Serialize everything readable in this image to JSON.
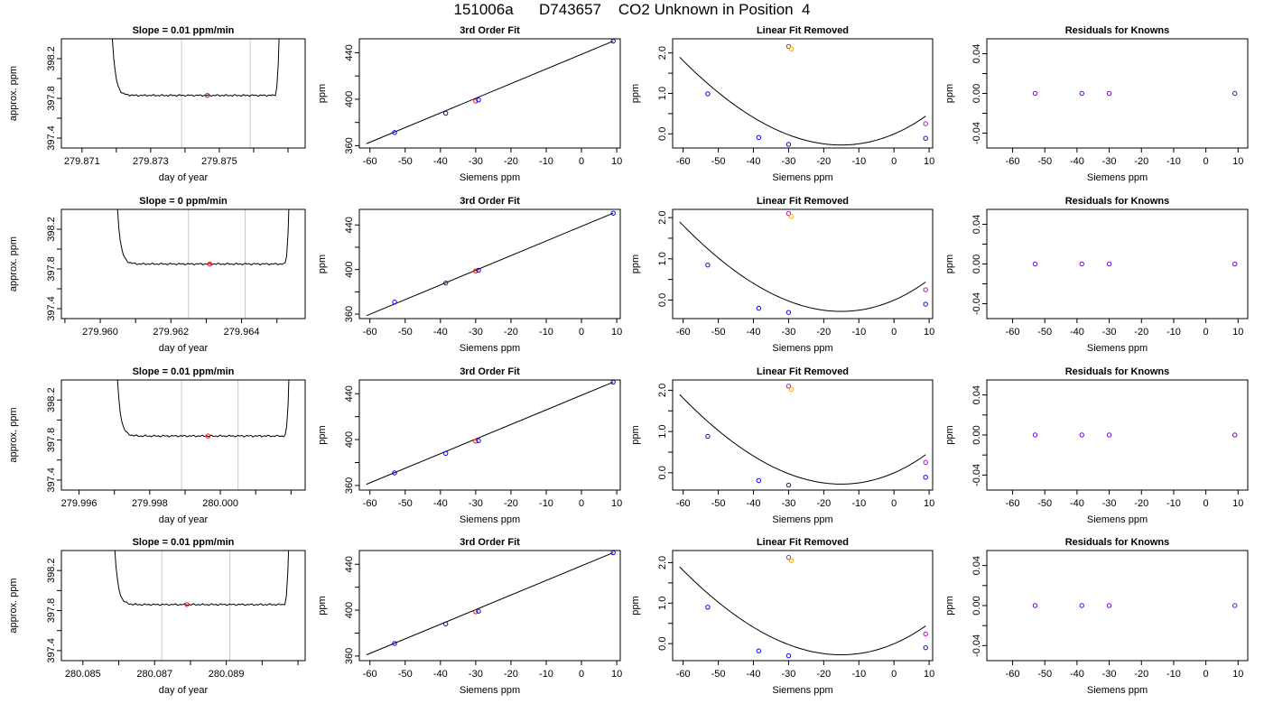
{
  "page_title": "151006a      D743657    CO2 Unknown in Position  4",
  "colors": {
    "trace": "#000000",
    "window_line": "#c8c8c8",
    "unknown_point": "#ff0000",
    "known_point": "#0000ff",
    "ref_magenta": "#cc00cc",
    "ref_orange": "#ffa500",
    "residual_point": "#6600cc"
  },
  "chart_data": [
    {
      "row": 1,
      "type": "line",
      "title": "Slope =  0.01  ppm/min",
      "xlabel": "day of year",
      "ylabel": "approx. ppm",
      "xlim": [
        279.8704,
        279.8775
      ],
      "ylim": [
        397.3,
        398.4
      ],
      "xticks": [
        279.871,
        279.872,
        279.873,
        279.874,
        279.875,
        279.876,
        279.877
      ],
      "xticklabels": [
        "279.871",
        "",
        "279.873",
        "",
        "279.875",
        "",
        ""
      ],
      "yticks": [
        397.4,
        397.6,
        397.8,
        398.0,
        398.2
      ],
      "yticklabels": [
        "397.4",
        "",
        "397.8",
        "",
        "398.2"
      ],
      "trace": {
        "x_start": 279.8718,
        "x_end": 279.8768,
        "level": 397.83
      },
      "window": [
        279.8739,
        279.8759
      ],
      "marker": [
        279.87465,
        397.83
      ]
    },
    {
      "row": 1,
      "type": "scatter",
      "title": "3rd Order Fit",
      "xlabel": "Siemens ppm",
      "ylabel": "ppm",
      "xlim": [
        -63,
        11
      ],
      "ylim": [
        358,
        452
      ],
      "xticks": [
        -60,
        -50,
        -40,
        -30,
        -20,
        -10,
        0,
        10
      ],
      "yticks": [
        360,
        380,
        400,
        420,
        440
      ],
      "yticklabels": [
        "360",
        "",
        "400",
        "",
        "440"
      ],
      "points": [
        [
          -53,
          371.3
        ],
        [
          -38.5,
          387.9
        ],
        [
          -30,
          398.4
        ],
        [
          -29.2,
          399.3
        ],
        [
          9,
          450.0
        ]
      ],
      "fit": [
        [
          -61,
          361.7
        ],
        [
          9,
          450.0
        ]
      ]
    },
    {
      "row": 1,
      "type": "scatter",
      "title": "Linear Fit Removed",
      "xlabel": "Siemens ppm",
      "ylabel": "ppm",
      "xlim": [
        -63,
        11
      ],
      "ylim": [
        -0.35,
        2.35
      ],
      "xticks": [
        -60,
        -50,
        -40,
        -30,
        -20,
        -10,
        0,
        10
      ],
      "yticks": [
        0,
        0.5,
        1.0,
        1.5,
        2.0
      ],
      "yticklabels": [
        "0.0",
        "",
        "1.0",
        "",
        "2.0"
      ],
      "known_points": [
        [
          -53,
          0.99
        ],
        [
          -38.5,
          -0.09
        ],
        [
          -30,
          -0.26
        ],
        [
          9,
          -0.11
        ]
      ],
      "ref_points": [
        [
          -30,
          2.16,
          "magenta"
        ],
        [
          -29.2,
          2.1,
          "orange"
        ],
        [
          9,
          0.25,
          "magenta"
        ]
      ],
      "curve_coef": [
        -0.003,
        0.037,
        0.0013,
        3e-06
      ]
    },
    {
      "row": 1,
      "type": "scatter",
      "title": "Residuals for Knowns",
      "xlabel": "Siemens ppm",
      "ylabel": "ppm",
      "xlim": [
        -68,
        13
      ],
      "ylim": [
        -0.055,
        0.055
      ],
      "xticks": [
        -60,
        -50,
        -40,
        -30,
        -20,
        -10,
        0,
        10
      ],
      "yticks": [
        -0.04,
        -0.02,
        0,
        0.02,
        0.04
      ],
      "yticklabels": [
        "-0.04",
        "",
        "0.00",
        "",
        "0.04"
      ],
      "points": [
        [
          -53,
          0
        ],
        [
          -38.5,
          0
        ],
        [
          -30,
          0
        ],
        [
          9,
          0
        ]
      ]
    },
    {
      "row": 2,
      "type": "line",
      "title": "Slope =  0  ppm/min",
      "xlabel": "day of year",
      "ylabel": "approx. ppm",
      "xlim": [
        279.9589,
        279.9658
      ],
      "ylim": [
        397.3,
        398.4
      ],
      "xticks": [
        279.959,
        279.96,
        279.961,
        279.962,
        279.963,
        279.964,
        279.965
      ],
      "xticklabels": [
        "",
        "279.960",
        "",
        "279.962",
        "",
        "279.964",
        ""
      ],
      "yticks": [
        397.4,
        397.6,
        397.8,
        398.0,
        398.2
      ],
      "yticklabels": [
        "397.4",
        "",
        "397.8",
        "",
        "398.2"
      ],
      "trace": {
        "x_start": 279.9604,
        "x_end": 279.9654,
        "level": 397.85
      },
      "window": [
        279.9625,
        279.9641
      ],
      "marker": [
        279.9631,
        397.85
      ]
    },
    {
      "row": 2,
      "type": "scatter",
      "title": "3rd Order Fit",
      "xlabel": "Siemens ppm",
      "ylabel": "ppm",
      "xlim": [
        -63,
        11
      ],
      "ylim": [
        356,
        454
      ],
      "xticks": [
        -60,
        -50,
        -40,
        -30,
        -20,
        -10,
        0,
        10
      ],
      "yticks": [
        360,
        380,
        400,
        420,
        440
      ],
      "yticklabels": [
        "360",
        "",
        "400",
        "",
        "440"
      ],
      "points": [
        [
          -53,
          370.8
        ],
        [
          -38.5,
          387.9
        ],
        [
          -30,
          398.8
        ],
        [
          -29.2,
          399.4
        ],
        [
          9,
          450.6
        ]
      ],
      "fit": [
        [
          -61,
          358.6
        ],
        [
          9,
          450.6
        ]
      ]
    },
    {
      "row": 2,
      "type": "scatter",
      "title": "Linear Fit Removed",
      "xlabel": "Siemens ppm",
      "ylabel": "ppm",
      "xlim": [
        -63,
        11
      ],
      "ylim": [
        -0.45,
        2.2
      ],
      "xticks": [
        -60,
        -50,
        -40,
        -30,
        -20,
        -10,
        0,
        10
      ],
      "yticks": [
        0,
        0.5,
        1.0,
        1.5,
        2.0
      ],
      "yticklabels": [
        "0.0",
        "",
        "1.0",
        "",
        "2.0"
      ],
      "known_points": [
        [
          -53,
          0.85
        ],
        [
          -38.5,
          -0.2
        ],
        [
          -30,
          -0.3
        ],
        [
          9,
          -0.1
        ]
      ],
      "ref_points": [
        [
          -30,
          2.1,
          "magenta"
        ],
        [
          -29.2,
          2.03,
          "orange"
        ],
        [
          9,
          0.25,
          "magenta"
        ]
      ],
      "curve_coef": [
        -0.003,
        0.037,
        0.0013,
        3e-06
      ]
    },
    {
      "row": 2,
      "type": "scatter",
      "title": "Residuals for Knowns",
      "xlabel": "Siemens ppm",
      "ylabel": "ppm",
      "xlim": [
        -68,
        13
      ],
      "ylim": [
        -0.055,
        0.055
      ],
      "xticks": [
        -60,
        -50,
        -40,
        -30,
        -20,
        -10,
        0,
        10
      ],
      "yticks": [
        -0.04,
        -0.02,
        0,
        0.02,
        0.04
      ],
      "yticklabels": [
        "-0.04",
        "",
        "0.00",
        "",
        "0.04"
      ],
      "points": [
        [
          -53,
          0
        ],
        [
          -38.5,
          0
        ],
        [
          -30,
          0
        ],
        [
          9,
          0
        ]
      ]
    },
    {
      "row": 3,
      "type": "line",
      "title": "Slope =  0.01  ppm/min",
      "xlabel": "day of year",
      "ylabel": "approx. ppm",
      "xlim": [
        279.9955,
        280.0024
      ],
      "ylim": [
        397.3,
        398.4
      ],
      "xticks": [
        279.996,
        279.997,
        279.998,
        279.999,
        280.0,
        280.001,
        280.002
      ],
      "xticklabels": [
        "279.996",
        "",
        "279.998",
        "",
        "280.000",
        "",
        ""
      ],
      "yticks": [
        397.4,
        397.6,
        397.8,
        398.0,
        398.2
      ],
      "yticklabels": [
        "397.4",
        "",
        "397.8",
        "",
        "398.2"
      ],
      "trace": {
        "x_start": 279.997,
        "x_end": 280.002,
        "level": 397.84
      },
      "window": [
        279.9989,
        280.0005
      ],
      "marker": [
        279.99965,
        397.84
      ]
    },
    {
      "row": 3,
      "type": "scatter",
      "title": "3rd Order Fit",
      "xlabel": "Siemens ppm",
      "ylabel": "ppm",
      "xlim": [
        -63,
        11
      ],
      "ylim": [
        356,
        452
      ],
      "xticks": [
        -60,
        -50,
        -40,
        -30,
        -20,
        -10,
        0,
        10
      ],
      "yticks": [
        360,
        380,
        400,
        420,
        440
      ],
      "yticklabels": [
        "360",
        "",
        "400",
        "",
        "440"
      ],
      "points": [
        [
          -53,
          371.0
        ],
        [
          -38.5,
          388.0
        ],
        [
          -30,
          398.6
        ],
        [
          -29.2,
          399.1
        ],
        [
          9,
          450.1
        ]
      ],
      "fit": [
        [
          -61,
          361.0
        ],
        [
          9,
          450.1
        ]
      ]
    },
    {
      "row": 3,
      "type": "scatter",
      "title": "Linear Fit Removed",
      "xlabel": "Siemens ppm",
      "ylabel": "ppm",
      "xlim": [
        -63,
        11
      ],
      "ylim": [
        -0.42,
        2.25
      ],
      "xticks": [
        -60,
        -50,
        -40,
        -30,
        -20,
        -10,
        0,
        10
      ],
      "yticks": [
        0,
        0.5,
        1.0,
        1.5,
        2.0
      ],
      "yticklabels": [
        "0.0",
        "",
        "1.0",
        "",
        "2.0"
      ],
      "known_points": [
        [
          -53,
          0.88
        ],
        [
          -38.5,
          -0.19
        ],
        [
          -30,
          -0.3
        ],
        [
          9,
          -0.11
        ]
      ],
      "ref_points": [
        [
          -30,
          2.1,
          "magenta"
        ],
        [
          -29.2,
          2.02,
          "orange"
        ],
        [
          9,
          0.25,
          "magenta"
        ]
      ],
      "curve_coef": [
        -0.003,
        0.037,
        0.0013,
        3e-06
      ]
    },
    {
      "row": 3,
      "type": "scatter",
      "title": "Residuals for Knowns",
      "xlabel": "Siemens ppm",
      "ylabel": "ppm",
      "xlim": [
        -68,
        13
      ],
      "ylim": [
        -0.055,
        0.055
      ],
      "xticks": [
        -60,
        -50,
        -40,
        -30,
        -20,
        -10,
        0,
        10
      ],
      "yticks": [
        -0.04,
        -0.02,
        0,
        0.02,
        0.04
      ],
      "yticklabels": [
        "-0.04",
        "",
        "0.00",
        "",
        "0.04"
      ],
      "points": [
        [
          -53,
          0
        ],
        [
          -38.5,
          0
        ],
        [
          -30,
          0
        ],
        [
          9,
          0
        ]
      ]
    },
    {
      "row": 4,
      "type": "line",
      "title": "Slope =  0.01  ppm/min",
      "xlabel": "day of year",
      "ylabel": "approx. ppm",
      "xlim": [
        280.0844,
        280.0912
      ],
      "ylim": [
        397.3,
        398.4
      ],
      "xticks": [
        280.085,
        280.086,
        280.087,
        280.088,
        280.089,
        280.09,
        280.091
      ],
      "xticklabels": [
        "280.085",
        "",
        "280.087",
        "",
        "280.089",
        "",
        ""
      ],
      "yticks": [
        397.4,
        397.6,
        397.8,
        398.0,
        398.2
      ],
      "yticklabels": [
        "397.4",
        "",
        "397.8",
        "",
        "398.2"
      ],
      "trace": {
        "x_start": 280.0858,
        "x_end": 280.0908,
        "level": 397.86
      },
      "window": [
        280.0872,
        280.0891
      ],
      "marker": [
        280.0879,
        397.86
      ]
    },
    {
      "row": 4,
      "type": "scatter",
      "title": "3rd Order Fit",
      "xlabel": "Siemens ppm",
      "ylabel": "ppm",
      "xlim": [
        -63,
        11
      ],
      "ylim": [
        356,
        452
      ],
      "xticks": [
        -60,
        -50,
        -40,
        -30,
        -20,
        -10,
        0,
        10
      ],
      "yticks": [
        360,
        380,
        400,
        420,
        440
      ],
      "yticklabels": [
        "360",
        "",
        "400",
        "",
        "440"
      ],
      "points": [
        [
          -53,
          371.0
        ],
        [
          -38.5,
          388.0
        ],
        [
          -30,
          398.6
        ],
        [
          -29.2,
          399.1
        ],
        [
          9,
          450.1
        ]
      ],
      "fit": [
        [
          -61,
          361.0
        ],
        [
          9,
          450.1
        ]
      ]
    },
    {
      "row": 4,
      "type": "scatter",
      "title": "Linear Fit Removed",
      "xlabel": "Siemens ppm",
      "ylabel": "ppm",
      "xlim": [
        -63,
        11
      ],
      "ylim": [
        -0.42,
        2.3
      ],
      "xticks": [
        -60,
        -50,
        -40,
        -30,
        -20,
        -10,
        0,
        10
      ],
      "yticks": [
        0,
        0.5,
        1.0,
        1.5,
        2.0
      ],
      "yticklabels": [
        "0.0",
        "",
        "1.0",
        "",
        "2.0"
      ],
      "known_points": [
        [
          -53,
          0.9
        ],
        [
          -38.5,
          -0.18
        ],
        [
          -30,
          -0.3
        ],
        [
          9,
          -0.1
        ]
      ],
      "ref_points": [
        [
          -30,
          2.13,
          "magenta"
        ],
        [
          -29.2,
          2.05,
          "orange"
        ],
        [
          9,
          0.24,
          "magenta"
        ]
      ],
      "curve_coef": [
        -0.003,
        0.037,
        0.0013,
        3e-06
      ]
    },
    {
      "row": 4,
      "type": "scatter",
      "title": "Residuals for Knowns",
      "xlabel": "Siemens ppm",
      "ylabel": "ppm",
      "xlim": [
        -68,
        13
      ],
      "ylim": [
        -0.055,
        0.055
      ],
      "xticks": [
        -60,
        -50,
        -40,
        -30,
        -20,
        -10,
        0,
        10
      ],
      "yticks": [
        -0.04,
        -0.02,
        0,
        0.02,
        0.04
      ],
      "yticklabels": [
        "-0.04",
        "",
        "0.00",
        "",
        "0.04"
      ],
      "points": [
        [
          -53,
          0
        ],
        [
          -38.5,
          0
        ],
        [
          -30,
          0
        ],
        [
          9,
          0
        ]
      ]
    }
  ]
}
